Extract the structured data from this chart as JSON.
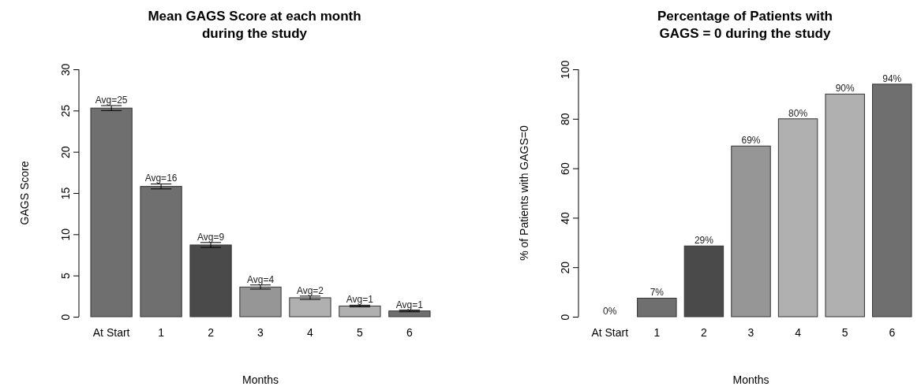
{
  "chart_data": [
    {
      "type": "bar",
      "title": "Mean GAGS Score at each month\nduring the study",
      "xlabel": "Months",
      "ylabel": "GAGS Score",
      "categories": [
        "At Start",
        "1",
        "2",
        "3",
        "4",
        "5",
        "6"
      ],
      "values": [
        25.3,
        15.8,
        8.7,
        3.6,
        2.3,
        1.3,
        0.7
      ],
      "errors": [
        0.3,
        0.3,
        0.3,
        0.25,
        0.2,
        0.1,
        0.1
      ],
      "value_labels": [
        "Avg=25",
        "Avg=16",
        "Avg=9",
        "Avg=4",
        "Avg=2",
        "Avg=1",
        "Avg=1"
      ],
      "colors": [
        "#6f6f6f",
        "#6f6f6f",
        "#4a4a4a",
        "#969696",
        "#b0b0b0",
        "#b0b0b0",
        "#6f6f6f"
      ],
      "ylim": [
        0,
        30
      ],
      "yticks": [
        0,
        5,
        10,
        15,
        20,
        25,
        30
      ],
      "grid": false
    },
    {
      "type": "bar",
      "title": "Percentage of Patients with\nGAGS = 0 during the study",
      "xlabel": "Months",
      "ylabel": "% of Patients with GAGS=0",
      "categories": [
        "At Start",
        "1",
        "2",
        "3",
        "4",
        "5",
        "6"
      ],
      "values": [
        0,
        7.5,
        28.6,
        69,
        80,
        90,
        94
      ],
      "value_labels": [
        "0%",
        "7%",
        "29%",
        "69%",
        "80%",
        "90%",
        "94%"
      ],
      "colors": [
        "#ffffff",
        "#6f6f6f",
        "#4a4a4a",
        "#969696",
        "#b0b0b0",
        "#b0b0b0",
        "#6f6f6f"
      ],
      "ylim": [
        0,
        100
      ],
      "yticks": [
        0,
        20,
        40,
        60,
        80,
        100
      ],
      "grid": false
    }
  ]
}
